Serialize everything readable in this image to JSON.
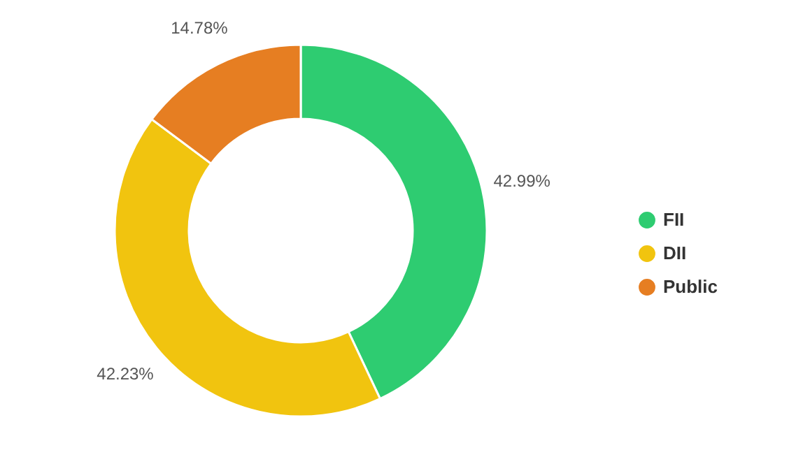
{
  "chart_data": {
    "type": "donut",
    "categories": [
      "FII",
      "DII",
      "Public"
    ],
    "values": [
      42.99,
      42.23,
      14.78
    ],
    "colors": [
      "#2ecc71",
      "#f1c40f",
      "#e67e22"
    ],
    "value_labels": [
      "42.99%",
      "42.23%",
      "14.78%"
    ],
    "legend": "right"
  }
}
